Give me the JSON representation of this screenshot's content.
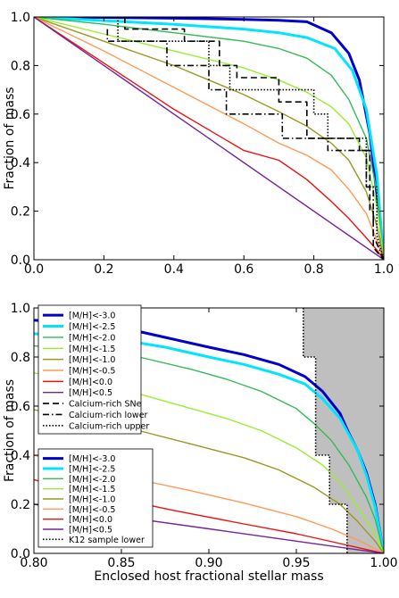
{
  "chart_data": [
    {
      "type": "line",
      "title": "",
      "xlabel": "",
      "ylabel": "Fraction of mass",
      "xlim": [
        0.0,
        1.0
      ],
      "ylim": [
        0.0,
        1.0
      ],
      "xticks": [
        "0.0",
        "0.2",
        "0.4",
        "0.6",
        "0.8",
        "1.0"
      ],
      "yticks": [
        "0.0",
        "0.2",
        "0.4",
        "0.6",
        "0.8",
        "1.0"
      ],
      "legend_position": "lower-left",
      "grid": false,
      "series": [
        {
          "name": "[M/H]<-3.0",
          "color": "#0000cc",
          "style": "solid-thick",
          "x": [
            0,
            0.2,
            0.4,
            0.6,
            0.7,
            0.78,
            0.85,
            0.9,
            0.93,
            0.96,
            0.98,
            1.0
          ],
          "y": [
            1,
            0.998,
            0.995,
            0.99,
            0.986,
            0.98,
            0.935,
            0.85,
            0.74,
            0.52,
            0.27,
            0
          ]
        },
        {
          "name": "[M/H]<-2.5",
          "color": "#00e5ff",
          "style": "solid-thick",
          "x": [
            0,
            0.2,
            0.4,
            0.6,
            0.7,
            0.78,
            0.86,
            0.91,
            0.95,
            0.98,
            1.0
          ],
          "y": [
            1,
            0.985,
            0.97,
            0.95,
            0.935,
            0.915,
            0.87,
            0.78,
            0.62,
            0.35,
            0
          ]
        },
        {
          "name": "[M/H]<-2.0",
          "color": "#33bb55",
          "style": "solid",
          "x": [
            0,
            0.2,
            0.4,
            0.6,
            0.7,
            0.78,
            0.85,
            0.9,
            0.95,
            0.98,
            1.0
          ],
          "y": [
            1,
            0.97,
            0.935,
            0.9,
            0.87,
            0.83,
            0.76,
            0.66,
            0.5,
            0.28,
            0
          ]
        },
        {
          "name": "[M/H]<-1.5",
          "color": "#99ee33",
          "style": "solid",
          "x": [
            0,
            0.2,
            0.4,
            0.6,
            0.7,
            0.78,
            0.85,
            0.9,
            0.95,
            0.98,
            1.0
          ],
          "y": [
            1,
            0.93,
            0.86,
            0.79,
            0.74,
            0.69,
            0.63,
            0.56,
            0.42,
            0.22,
            0
          ]
        },
        {
          "name": "[M/H]<-1.0",
          "color": "#999922",
          "style": "solid",
          "x": [
            0,
            0.2,
            0.4,
            0.6,
            0.7,
            0.78,
            0.85,
            0.9,
            0.95,
            0.98,
            1.0
          ],
          "y": [
            1,
            0.9,
            0.8,
            0.68,
            0.61,
            0.55,
            0.48,
            0.41,
            0.28,
            0.14,
            0
          ]
        },
        {
          "name": "[M/H]<-0.5",
          "color": "#ff9955",
          "style": "solid",
          "x": [
            0,
            0.2,
            0.4,
            0.6,
            0.7,
            0.78,
            0.85,
            0.9,
            0.95,
            0.98,
            1.0
          ],
          "y": [
            1,
            0.86,
            0.71,
            0.56,
            0.48,
            0.43,
            0.37,
            0.29,
            0.19,
            0.08,
            0
          ]
        },
        {
          "name": "[M/H]<0.0",
          "color": "#ee1111",
          "style": "solid",
          "x": [
            0,
            0.2,
            0.4,
            0.6,
            0.7,
            0.78,
            0.85,
            0.9,
            0.95,
            0.98,
            1.0
          ],
          "y": [
            1,
            0.81,
            0.62,
            0.45,
            0.41,
            0.33,
            0.24,
            0.17,
            0.09,
            0.04,
            0
          ]
        },
        {
          "name": "[M/H]<0.5",
          "color": "#772299",
          "style": "solid",
          "x": [
            0,
            1.0
          ],
          "y": [
            1,
            0
          ]
        },
        {
          "name": "Calcium-rich SNe",
          "color": "#000000",
          "style": "dashed",
          "x": [
            0.26,
            0.26,
            0.43,
            0.43,
            0.53,
            0.53,
            0.58,
            0.58,
            0.7,
            0.7,
            0.78,
            0.78,
            0.93,
            0.93,
            0.96,
            0.96,
            0.97,
            0.97,
            1.0
          ],
          "y": [
            1.0,
            0.95,
            0.95,
            0.9,
            0.9,
            0.8,
            0.8,
            0.75,
            0.75,
            0.65,
            0.65,
            0.5,
            0.5,
            0.45,
            0.45,
            0.2,
            0.2,
            0.05,
            0.0
          ]
        },
        {
          "name": "Calcium-rich lower",
          "color": "#000000",
          "style": "dashdot",
          "x": [
            0.21,
            0.21,
            0.38,
            0.38,
            0.5,
            0.5,
            0.55,
            0.55,
            0.71,
            0.71,
            0.84,
            0.84,
            0.95,
            0.95,
            0.97,
            0.97,
            1.0
          ],
          "y": [
            0.95,
            0.9,
            0.9,
            0.8,
            0.8,
            0.7,
            0.7,
            0.6,
            0.6,
            0.5,
            0.5,
            0.45,
            0.45,
            0.3,
            0.3,
            0.1,
            0.0
          ]
        },
        {
          "name": "Calcium-rich upper",
          "color": "#000000",
          "style": "dotted",
          "x": [
            0.24,
            0.24,
            0.5,
            0.5,
            0.56,
            0.56,
            0.64,
            0.64,
            0.8,
            0.8,
            0.84,
            0.84,
            0.95,
            0.95,
            0.98,
            0.98,
            1.0
          ],
          "y": [
            1.0,
            0.9,
            0.9,
            0.8,
            0.8,
            0.7,
            0.7,
            0.7,
            0.7,
            0.6,
            0.6,
            0.5,
            0.5,
            0.3,
            0.3,
            0.1,
            0.0
          ]
        }
      ]
    },
    {
      "type": "line",
      "title": "",
      "xlabel": "Enclosed host fractional stellar mass",
      "ylabel": "Fraction of mass",
      "xlim": [
        0.8,
        1.0
      ],
      "ylim": [
        0.0,
        1.0
      ],
      "xticks": [
        "0.80",
        "0.85",
        "0.90",
        "0.95",
        "1.00"
      ],
      "yticks": [
        "0.0",
        "0.2",
        "0.4",
        "0.6",
        "0.8",
        "1.0"
      ],
      "legend_position": "lower-left",
      "grid": false,
      "shaded_region_color": "#bfbfbf",
      "series": [
        {
          "name": "[M/H]<-3.0",
          "color": "#0000cc",
          "style": "solid-thick",
          "x": [
            0.8,
            0.82,
            0.85,
            0.875,
            0.9,
            0.92,
            0.94,
            0.955,
            0.965,
            0.975,
            0.98,
            0.985,
            0.99,
            0.995,
            1.0
          ],
          "y": [
            0.95,
            0.94,
            0.92,
            0.88,
            0.84,
            0.81,
            0.77,
            0.72,
            0.66,
            0.57,
            0.49,
            0.42,
            0.33,
            0.2,
            0
          ]
        },
        {
          "name": "[M/H]<-2.5",
          "color": "#00e5ff",
          "style": "solid-thick",
          "x": [
            0.8,
            0.82,
            0.85,
            0.875,
            0.9,
            0.92,
            0.94,
            0.955,
            0.965,
            0.975,
            0.985,
            0.99,
            0.995,
            1.0
          ],
          "y": [
            0.895,
            0.885,
            0.87,
            0.84,
            0.8,
            0.77,
            0.73,
            0.69,
            0.63,
            0.55,
            0.42,
            0.32,
            0.19,
            0
          ]
        },
        {
          "name": "[M/H]<-2.0",
          "color": "#33bb55",
          "style": "solid",
          "x": [
            0.8,
            0.83,
            0.86,
            0.89,
            0.91,
            0.93,
            0.95,
            0.96,
            0.97,
            0.98,
            0.99,
            0.995,
            1.0
          ],
          "y": [
            0.845,
            0.83,
            0.8,
            0.75,
            0.71,
            0.66,
            0.59,
            0.53,
            0.46,
            0.36,
            0.23,
            0.14,
            0
          ]
        },
        {
          "name": "[M/H]<-1.5",
          "color": "#99ee33",
          "style": "solid",
          "x": [
            0.8,
            0.83,
            0.86,
            0.89,
            0.91,
            0.93,
            0.95,
            0.965,
            0.975,
            0.985,
            0.995,
            1.0
          ],
          "y": [
            0.735,
            0.7,
            0.65,
            0.59,
            0.55,
            0.5,
            0.43,
            0.36,
            0.29,
            0.19,
            0.08,
            0
          ]
        },
        {
          "name": "[M/H]<-1.0",
          "color": "#999922",
          "style": "solid",
          "x": [
            0.8,
            0.83,
            0.86,
            0.89,
            0.92,
            0.94,
            0.96,
            0.975,
            0.985,
            0.995,
            1.0
          ],
          "y": [
            0.585,
            0.545,
            0.5,
            0.445,
            0.39,
            0.34,
            0.27,
            0.2,
            0.13,
            0.05,
            0
          ]
        },
        {
          "name": "[M/H]<-0.5",
          "color": "#ff9955",
          "style": "solid",
          "x": [
            0.8,
            0.83,
            0.86,
            0.89,
            0.92,
            0.95,
            0.97,
            0.985,
            1.0
          ],
          "y": [
            0.4,
            0.35,
            0.3,
            0.255,
            0.205,
            0.15,
            0.1,
            0.055,
            0
          ]
        },
        {
          "name": "[M/H]<0.0",
          "color": "#ee1111",
          "style": "solid",
          "x": [
            0.8,
            0.84,
            0.88,
            0.92,
            0.95,
            0.975,
            1.0
          ],
          "y": [
            0.3,
            0.235,
            0.175,
            0.12,
            0.08,
            0.04,
            0
          ]
        },
        {
          "name": "[M/H]<0.5",
          "color": "#772299",
          "style": "solid",
          "x": [
            0.8,
            0.85,
            0.9,
            0.95,
            1.0
          ],
          "y": [
            0.2,
            0.15,
            0.1,
            0.05,
            0
          ]
        },
        {
          "name": "K12 sample lower",
          "color": "#000000",
          "style": "dotted",
          "x": [
            0.954,
            0.954,
            0.961,
            0.961,
            0.969,
            0.969,
            0.979,
            0.979
          ],
          "y": [
            1.0,
            0.8,
            0.8,
            0.4,
            0.4,
            0.2,
            0.2,
            0.0
          ]
        }
      ]
    }
  ]
}
